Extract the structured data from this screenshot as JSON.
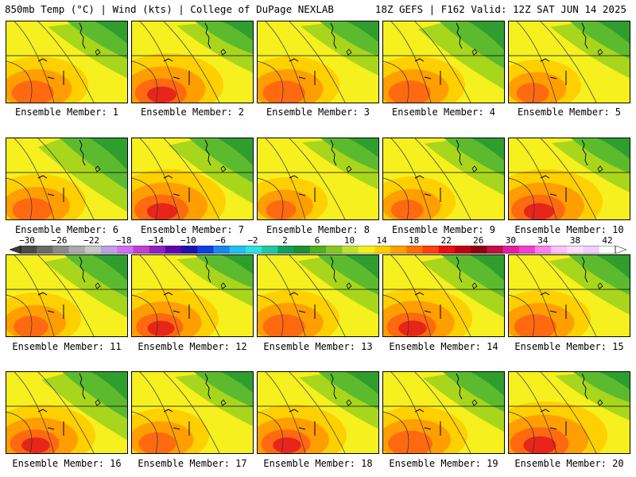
{
  "header": {
    "left": "850mb Temp (°C) | Wind (kts) | College of DuPage NEXLAB",
    "right": "18Z GEFS | F162 Valid: 12Z SAT JUN 14 2025"
  },
  "member_label_prefix": "Ensemble Member: ",
  "members": [
    {
      "id": "1",
      "label": "Ensemble Member: 1",
      "warm": 0.55,
      "cool": 0.45
    },
    {
      "id": "2",
      "label": "Ensemble Member: 2",
      "warm": 0.75,
      "cool": 0.35
    },
    {
      "id": "3",
      "label": "Ensemble Member: 3",
      "warm": 0.55,
      "cool": 0.4
    },
    {
      "id": "4",
      "label": "Ensemble Member: 4",
      "warm": 0.55,
      "cool": 0.65
    },
    {
      "id": "5",
      "label": "Ensemble Member: 5",
      "warm": 0.35,
      "cool": 0.45
    },
    {
      "id": "6",
      "label": "Ensemble Member: 6",
      "warm": 0.5,
      "cool": 0.75
    },
    {
      "id": "7",
      "label": "Ensemble Member: 7",
      "warm": 0.8,
      "cool": 0.6
    },
    {
      "id": "8",
      "label": "Ensemble Member: 8",
      "warm": 0.3,
      "cool": 0.35
    },
    {
      "id": "9",
      "label": "Ensemble Member: 9",
      "warm": 0.35,
      "cool": 0.45
    },
    {
      "id": "10",
      "label": "Ensemble Member: 10",
      "warm": 0.8,
      "cool": 0.4
    },
    {
      "id": "11",
      "label": "Ensemble Member: 11",
      "warm": 0.4,
      "cool": 0.55
    },
    {
      "id": "12",
      "label": "Ensemble Member: 12",
      "warm": 0.65,
      "cool": 0.35
    },
    {
      "id": "13",
      "label": "Ensemble Member: 13",
      "warm": 0.55,
      "cool": 0.5
    },
    {
      "id": "14",
      "label": "Ensemble Member: 14",
      "warm": 0.7,
      "cool": 0.55
    },
    {
      "id": "15",
      "label": "Ensemble Member: 15",
      "warm": 0.55,
      "cool": 0.5
    },
    {
      "id": "16",
      "label": "Ensemble Member: 16",
      "warm": 0.7,
      "cool": 0.65
    },
    {
      "id": "17",
      "label": "Ensemble Member: 17",
      "warm": 0.45,
      "cool": 0.4
    },
    {
      "id": "18",
      "label": "Ensemble Member: 18",
      "warm": 0.7,
      "cool": 0.45
    },
    {
      "id": "19",
      "label": "Ensemble Member: 19",
      "warm": 0.6,
      "cool": 0.5
    },
    {
      "id": "20",
      "label": "Ensemble Member: 20",
      "warm": 0.9,
      "cool": 0.3
    }
  ],
  "colorbar": {
    "unit": "°C",
    "ticks": [
      "-30",
      "-26",
      "-22",
      "-18",
      "-14",
      "-10",
      "-6",
      "-2",
      "2",
      "6",
      "10",
      "14",
      "18",
      "22",
      "26",
      "30",
      "34",
      "38",
      "42"
    ],
    "colors": [
      "#4a4a4a",
      "#6a6a6a",
      "#8a8a8a",
      "#aaaaaa",
      "#c8c8c8",
      "#c0a0e0",
      "#d070f0",
      "#c040d0",
      "#9020c0",
      "#6000b0",
      "#2010b0",
      "#1040e0",
      "#1888f0",
      "#20c0f0",
      "#30e0e0",
      "#20c8a0",
      "#10a060",
      "#209030",
      "#50b020",
      "#88c820",
      "#c0e030",
      "#f0f020",
      "#ffd000",
      "#ffa000",
      "#ff7000",
      "#ff4010",
      "#e81010",
      "#c00010",
      "#900010",
      "#c01040",
      "#e020a0",
      "#f040d0",
      "#ff80f0",
      "#ffc0ff",
      "#ffe0ff",
      "#f0d0ff",
      "#ffffff"
    ]
  },
  "palette": {
    "green_dark": "#2f9e2f",
    "green": "#5cba2e",
    "lime": "#a8d61c",
    "yellow": "#f5f01e",
    "gold": "#ffd000",
    "orange": "#ff9e00",
    "orange_red": "#ff6a10",
    "red": "#e8251a",
    "teal": "#20b890"
  }
}
